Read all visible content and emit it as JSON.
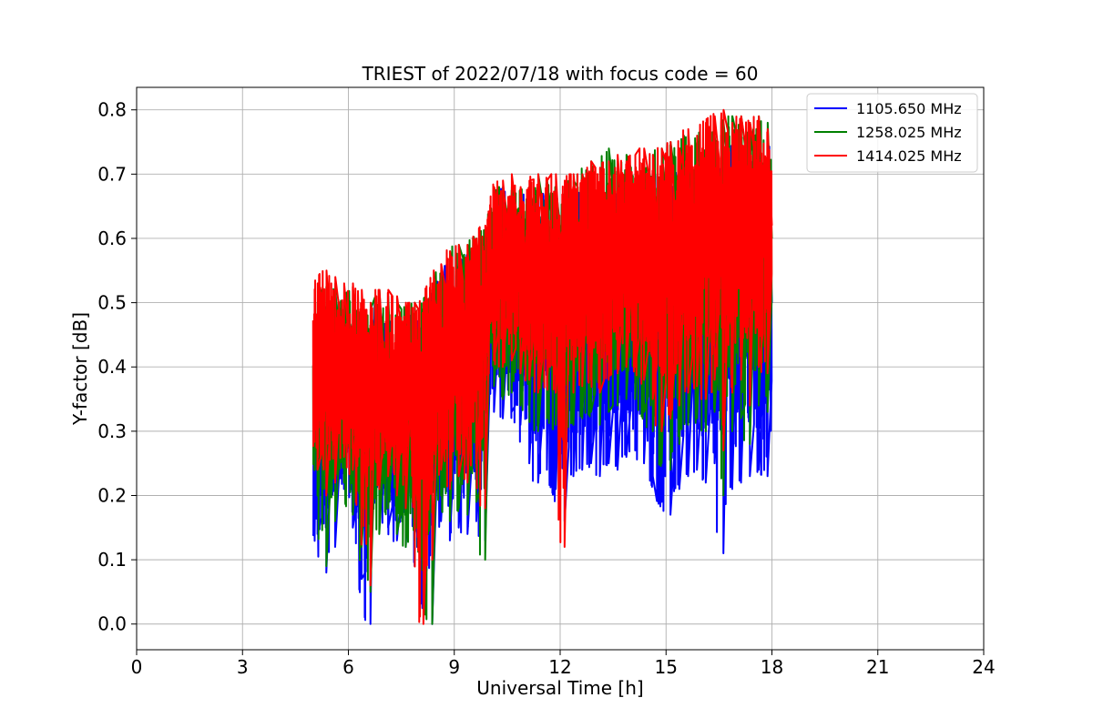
{
  "chart_data": {
    "type": "line",
    "title": "TRIEST of 2022/07/18 with focus code = 60",
    "xlabel": "Universal Time [h]",
    "ylabel": "Y-factor [dB]",
    "xlim": [
      0,
      24
    ],
    "ylim": [
      -0.04,
      0.835
    ],
    "xticks": [
      0,
      3,
      6,
      9,
      12,
      15,
      18,
      21,
      24
    ],
    "yticks": [
      0.0,
      0.1,
      0.2,
      0.3,
      0.4,
      0.5,
      0.6,
      0.7,
      0.8
    ],
    "ytick_labels": [
      "0.0",
      "0.1",
      "0.2",
      "0.3",
      "0.4",
      "0.5",
      "0.6",
      "0.7",
      "0.8"
    ],
    "grid": true,
    "legend_position": "top-right",
    "series": [
      {
        "name": "1105.650 MHz",
        "color": "#0000ff",
        "x": [
          5.0,
          5.25,
          5.5,
          5.75,
          6.0,
          6.25,
          6.5,
          6.75,
          7.0,
          7.25,
          7.5,
          7.75,
          8.0,
          8.25,
          8.5,
          8.75,
          9.0,
          9.25,
          9.5,
          9.75,
          10.0,
          10.25,
          10.5,
          10.75,
          11.0,
          11.25,
          11.5,
          11.75,
          12.0,
          12.25,
          12.5,
          12.75,
          13.0,
          13.25,
          13.5,
          13.75,
          14.0,
          14.25,
          14.5,
          14.75,
          15.0,
          15.25,
          15.5,
          15.75,
          16.0,
          16.25,
          16.5,
          16.75,
          17.0,
          17.25,
          17.5,
          17.75,
          18.0
        ],
        "y": [
          0.31,
          0.3,
          0.27,
          0.29,
          0.33,
          0.29,
          0.25,
          0.31,
          0.32,
          0.28,
          0.27,
          0.31,
          0.26,
          0.3,
          0.33,
          0.34,
          0.36,
          0.35,
          0.38,
          0.37,
          0.46,
          0.48,
          0.45,
          0.46,
          0.47,
          0.46,
          0.44,
          0.45,
          0.47,
          0.45,
          0.46,
          0.47,
          0.45,
          0.44,
          0.46,
          0.47,
          0.44,
          0.43,
          0.46,
          0.47,
          0.45,
          0.46,
          0.48,
          0.47,
          0.46,
          0.48,
          0.45,
          0.49,
          0.5,
          0.48,
          0.5,
          0.51,
          0.5
        ],
        "y_low": [
          0.14,
          0.08,
          0.12,
          0.21,
          0.15,
          0.07,
          0.0,
          0.2,
          0.15,
          0.13,
          0.12,
          0.14,
          0.04,
          0.0,
          0.16,
          0.13,
          0.15,
          0.14,
          0.16,
          0.13,
          0.33,
          0.32,
          0.33,
          0.31,
          0.25,
          0.22,
          0.24,
          0.21,
          0.16,
          0.23,
          0.24,
          0.25,
          0.23,
          0.25,
          0.24,
          0.26,
          0.27,
          0.25,
          0.23,
          0.19,
          0.17,
          0.21,
          0.23,
          0.24,
          0.22,
          0.25,
          0.11,
          0.21,
          0.22,
          0.23,
          0.24,
          0.23,
          0.31
        ],
        "y_high": [
          0.48,
          0.5,
          0.52,
          0.48,
          0.5,
          0.48,
          0.47,
          0.5,
          0.49,
          0.48,
          0.47,
          0.48,
          0.47,
          0.5,
          0.53,
          0.56,
          0.55,
          0.57,
          0.58,
          0.59,
          0.66,
          0.68,
          0.67,
          0.66,
          0.67,
          0.66,
          0.67,
          0.66,
          0.65,
          0.66,
          0.67,
          0.68,
          0.67,
          0.66,
          0.68,
          0.69,
          0.67,
          0.68,
          0.69,
          0.7,
          0.71,
          0.7,
          0.72,
          0.71,
          0.73,
          0.72,
          0.73,
          0.74,
          0.75,
          0.74,
          0.76,
          0.75,
          0.74
        ]
      },
      {
        "name": "1258.025 MHz",
        "color": "#008000",
        "x": [
          5.0,
          5.25,
          5.5,
          5.75,
          6.0,
          6.25,
          6.5,
          6.75,
          7.0,
          7.25,
          7.5,
          7.75,
          8.0,
          8.25,
          8.5,
          8.75,
          9.0,
          9.25,
          9.5,
          9.75,
          10.0,
          10.25,
          10.5,
          10.75,
          11.0,
          11.25,
          11.5,
          11.75,
          12.0,
          12.25,
          12.5,
          12.75,
          13.0,
          13.25,
          13.5,
          13.75,
          14.0,
          14.25,
          14.5,
          14.75,
          15.0,
          15.25,
          15.5,
          15.75,
          16.0,
          16.25,
          16.5,
          16.75,
          17.0,
          17.25,
          17.5,
          17.75,
          18.0
        ],
        "y": [
          0.34,
          0.33,
          0.3,
          0.32,
          0.35,
          0.31,
          0.28,
          0.33,
          0.34,
          0.3,
          0.29,
          0.33,
          0.28,
          0.32,
          0.36,
          0.37,
          0.39,
          0.38,
          0.41,
          0.4,
          0.5,
          0.52,
          0.5,
          0.51,
          0.52,
          0.51,
          0.5,
          0.51,
          0.52,
          0.51,
          0.52,
          0.53,
          0.52,
          0.51,
          0.53,
          0.54,
          0.52,
          0.52,
          0.53,
          0.54,
          0.53,
          0.54,
          0.56,
          0.55,
          0.55,
          0.57,
          0.55,
          0.58,
          0.59,
          0.58,
          0.6,
          0.61,
          0.6
        ],
        "y_low": [
          0.2,
          0.09,
          0.16,
          0.22,
          0.17,
          0.12,
          0.05,
          0.14,
          0.18,
          0.14,
          0.12,
          0.13,
          0.05,
          0.0,
          0.2,
          0.16,
          0.18,
          0.17,
          0.19,
          0.1,
          0.37,
          0.35,
          0.36,
          0.34,
          0.33,
          0.3,
          0.32,
          0.31,
          0.27,
          0.31,
          0.32,
          0.33,
          0.31,
          0.33,
          0.34,
          0.35,
          0.35,
          0.33,
          0.3,
          0.25,
          0.24,
          0.28,
          0.31,
          0.32,
          0.3,
          0.33,
          0.2,
          0.3,
          0.32,
          0.28,
          0.34,
          0.33,
          0.4
        ],
        "y_high": [
          0.5,
          0.52,
          0.53,
          0.5,
          0.52,
          0.5,
          0.49,
          0.52,
          0.51,
          0.5,
          0.49,
          0.5,
          0.49,
          0.52,
          0.55,
          0.58,
          0.59,
          0.59,
          0.6,
          0.61,
          0.66,
          0.68,
          0.68,
          0.67,
          0.68,
          0.7,
          0.69,
          0.68,
          0.68,
          0.69,
          0.7,
          0.72,
          0.7,
          0.74,
          0.72,
          0.73,
          0.71,
          0.72,
          0.73,
          0.74,
          0.75,
          0.74,
          0.76,
          0.75,
          0.77,
          0.76,
          0.78,
          0.79,
          0.79,
          0.78,
          0.79,
          0.78,
          0.75
        ]
      },
      {
        "name": "1414.025 MHz",
        "color": "#ff0000",
        "x": [
          5.0,
          5.25,
          5.5,
          5.75,
          6.0,
          6.25,
          6.5,
          6.75,
          7.0,
          7.25,
          7.5,
          7.75,
          8.0,
          8.25,
          8.5,
          8.75,
          9.0,
          9.25,
          9.5,
          9.75,
          10.0,
          10.25,
          10.5,
          10.75,
          11.0,
          11.25,
          11.5,
          11.75,
          12.0,
          12.25,
          12.5,
          12.75,
          13.0,
          13.25,
          13.5,
          13.75,
          14.0,
          14.25,
          14.5,
          14.75,
          15.0,
          15.25,
          15.5,
          15.75,
          16.0,
          16.25,
          16.5,
          16.75,
          17.0,
          17.25,
          17.5,
          17.75,
          18.0
        ],
        "y": [
          0.38,
          0.37,
          0.36,
          0.37,
          0.39,
          0.36,
          0.34,
          0.37,
          0.38,
          0.35,
          0.34,
          0.37,
          0.33,
          0.36,
          0.4,
          0.41,
          0.43,
          0.42,
          0.45,
          0.44,
          0.53,
          0.55,
          0.54,
          0.55,
          0.56,
          0.55,
          0.54,
          0.55,
          0.56,
          0.55,
          0.56,
          0.57,
          0.56,
          0.55,
          0.57,
          0.58,
          0.56,
          0.56,
          0.57,
          0.58,
          0.57,
          0.58,
          0.6,
          0.59,
          0.59,
          0.61,
          0.59,
          0.62,
          0.62,
          0.61,
          0.63,
          0.64,
          0.62
        ],
        "y_low": [
          0.24,
          0.2,
          0.22,
          0.26,
          0.24,
          0.18,
          0.06,
          0.21,
          0.23,
          0.2,
          0.18,
          0.19,
          0.0,
          0.1,
          0.24,
          0.21,
          0.23,
          0.22,
          0.25,
          0.18,
          0.41,
          0.4,
          0.41,
          0.39,
          0.38,
          0.36,
          0.37,
          0.36,
          0.12,
          0.36,
          0.37,
          0.38,
          0.36,
          0.38,
          0.39,
          0.4,
          0.4,
          0.38,
          0.35,
          0.3,
          0.32,
          0.34,
          0.36,
          0.37,
          0.35,
          0.38,
          0.27,
          0.36,
          0.38,
          0.34,
          0.4,
          0.39,
          0.48
        ],
        "y_high": [
          0.53,
          0.55,
          0.54,
          0.53,
          0.53,
          0.52,
          0.5,
          0.52,
          0.52,
          0.51,
          0.5,
          0.5,
          0.5,
          0.53,
          0.56,
          0.58,
          0.59,
          0.58,
          0.6,
          0.62,
          0.68,
          0.69,
          0.7,
          0.68,
          0.69,
          0.7,
          0.69,
          0.7,
          0.69,
          0.7,
          0.7,
          0.72,
          0.71,
          0.72,
          0.73,
          0.72,
          0.73,
          0.74,
          0.73,
          0.74,
          0.75,
          0.74,
          0.77,
          0.76,
          0.78,
          0.79,
          0.8,
          0.78,
          0.79,
          0.78,
          0.79,
          0.77,
          0.76
        ]
      }
    ]
  }
}
